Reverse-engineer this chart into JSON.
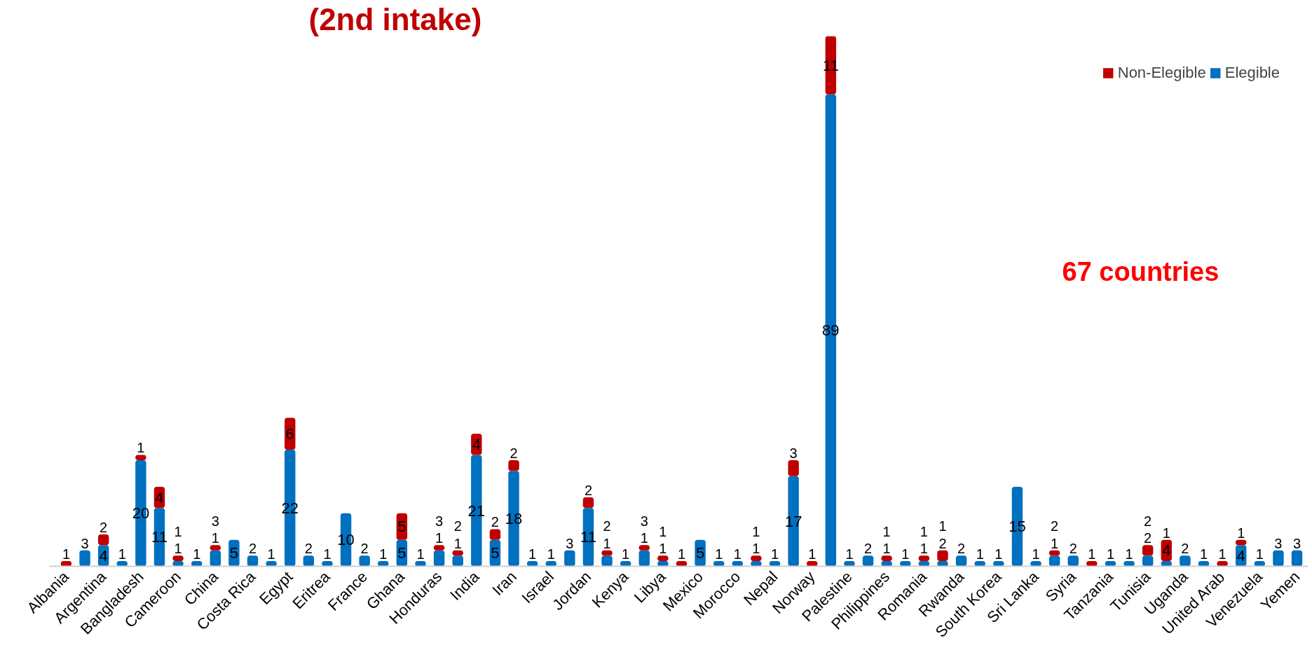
{
  "chart_data": {
    "type": "bar",
    "title": "(2nd intake)",
    "stacked": true,
    "data_labels": true,
    "legend": "top right",
    "grid": false,
    "annotations": [
      "67 countries"
    ],
    "categories": [
      "Albania",
      null,
      "Argentina",
      null,
      "Bangladesh",
      null,
      "Cameroon",
      null,
      "China",
      null,
      "Costa Rica",
      null,
      "Egypt",
      null,
      "Eritrea",
      null,
      "France",
      null,
      "Ghana",
      null,
      "Honduras",
      null,
      "India",
      null,
      "Iran",
      null,
      "Israel",
      null,
      "Jordan",
      null,
      "Kenya",
      null,
      "Libya",
      null,
      "Mexico",
      null,
      "Morocco",
      null,
      "Nepal",
      null,
      "Norway",
      null,
      "Palestine",
      null,
      "Philippines",
      null,
      "Romania",
      null,
      "Rwanda",
      null,
      "South Korea",
      null,
      "Sri Lanka",
      null,
      "Syria",
      null,
      "Tanzania",
      null,
      "Tunisia",
      null,
      "Uganda",
      null,
      "United Arab",
      null,
      "Venezuela",
      null,
      "Yemen"
    ],
    "series": [
      {
        "name": "Elegible",
        "color": "#0070c0",
        "values": [
          null,
          3,
          4,
          1,
          20,
          11,
          1,
          1,
          3,
          5,
          2,
          1,
          22,
          2,
          1,
          10,
          2,
          1,
          5,
          1,
          3,
          2,
          21,
          5,
          18,
          1,
          1,
          3,
          11,
          2,
          1,
          3,
          1,
          null,
          5,
          1,
          1,
          1,
          1,
          17,
          null,
          89,
          1,
          2,
          1,
          1,
          1,
          1,
          2,
          1,
          1,
          15,
          1,
          2,
          2,
          null,
          1,
          1,
          2,
          1,
          2,
          1,
          null,
          4,
          1,
          3,
          3
        ]
      },
      {
        "name": "Non-Elegible",
        "color": "#c00000",
        "values": [
          1,
          null,
          2,
          null,
          1,
          4,
          1,
          null,
          1,
          null,
          null,
          null,
          6,
          null,
          null,
          null,
          null,
          null,
          5,
          null,
          1,
          1,
          4,
          2,
          2,
          null,
          null,
          null,
          2,
          1,
          null,
          1,
          1,
          1,
          null,
          null,
          null,
          1,
          null,
          3,
          1,
          11,
          null,
          null,
          1,
          null,
          1,
          2,
          null,
          null,
          null,
          null,
          null,
          1,
          null,
          1,
          null,
          null,
          2,
          4,
          null,
          null,
          1,
          1,
          null,
          null,
          null
        ]
      }
    ]
  }
}
